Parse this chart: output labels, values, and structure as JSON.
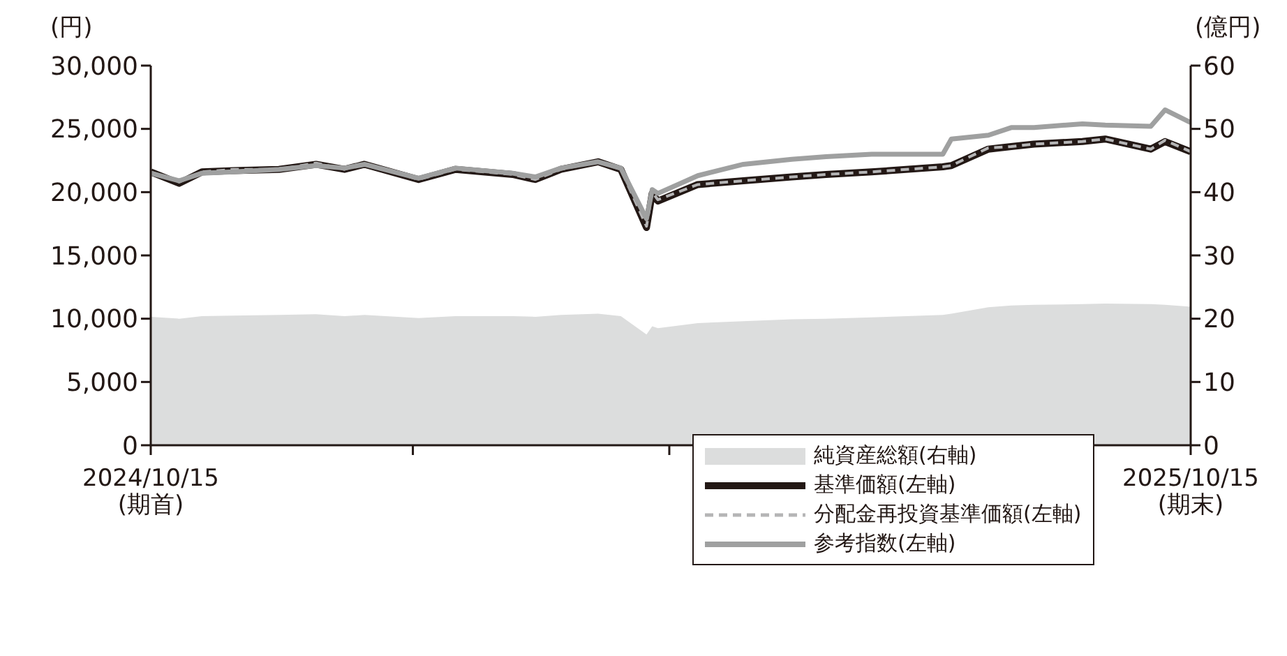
{
  "chart_data": {
    "type": "line",
    "ylabel": "(円)",
    "y2label": "(億円)",
    "x": [
      "2024-10-15",
      "2024-10-25",
      "2024-11-02",
      "2024-11-13",
      "2024-11-29",
      "2024-12-12",
      "2024-12-22",
      "2024-12-29",
      "2025-01-17",
      "2025-01-30",
      "2025-02-19",
      "2025-02-27",
      "2025-03-08",
      "2025-03-21",
      "2025-03-29",
      "2025-04-07",
      "2025-04-09",
      "2025-04-11",
      "2025-04-25",
      "2025-05-11",
      "2025-05-28",
      "2025-06-09",
      "2025-06-25",
      "2025-07-20",
      "2025-07-23",
      "2025-08-05",
      "2025-08-13",
      "2025-08-21",
      "2025-09-07",
      "2025-09-15",
      "2025-10-01",
      "2025-10-06",
      "2025-10-15"
    ],
    "series": [
      {
        "name": "純資産総額(右軸)",
        "type": "area",
        "axis": "y2",
        "color": "#dcdddd",
        "values": [
          20.3,
          20.0,
          20.4,
          20.5,
          20.6,
          20.7,
          20.4,
          20.6,
          20.1,
          20.4,
          20.4,
          20.3,
          20.6,
          20.8,
          20.4,
          17.5,
          18.8,
          18.5,
          19.3,
          19.6,
          19.9,
          20.0,
          20.2,
          20.6,
          20.8,
          21.8,
          22.1,
          22.2,
          22.3,
          22.4,
          22.3,
          22.2,
          21.9
        ]
      },
      {
        "name": "基準価額(左軸)",
        "color": "#231815",
        "values": [
          21600,
          20700,
          21600,
          21700,
          21800,
          22200,
          21800,
          22200,
          21000,
          21800,
          21400,
          21000,
          21800,
          22400,
          21800,
          17200,
          19900,
          19300,
          20600,
          20900,
          21200,
          21400,
          21600,
          22000,
          22100,
          23400,
          23600,
          23800,
          24000,
          24200,
          23400,
          24000,
          23200
        ]
      },
      {
        "name": "分配金再投資基準価額(左軸)",
        "line_style": "dashed",
        "color": "#b5b5b6",
        "values": [
          21600,
          20800,
          21600,
          21800,
          21800,
          22300,
          21800,
          22300,
          21000,
          21800,
          21400,
          21000,
          21800,
          22400,
          21800,
          17300,
          20000,
          19400,
          20600,
          20900,
          21200,
          21400,
          21600,
          22000,
          22100,
          23500,
          23600,
          23800,
          24000,
          24200,
          23400,
          24100,
          23200
        ]
      },
      {
        "name": "参考指数(左軸)",
        "color": "#9fa0a0",
        "values": [
          21500,
          20900,
          21500,
          21600,
          21800,
          22100,
          21900,
          22200,
          21100,
          21900,
          21500,
          21200,
          21900,
          22400,
          21900,
          17900,
          20200,
          19900,
          21300,
          22200,
          22600,
          22800,
          23000,
          23000,
          24200,
          24500,
          25100,
          25100,
          25400,
          25300,
          25200,
          26500,
          25500
        ]
      }
    ],
    "xlim": [
      "2024-10-15",
      "2025-10-15"
    ],
    "xticks": [
      {
        "value": "2024-10-15",
        "label": "2024/10/15\n(期首)"
      },
      {
        "value": "2025-01-15",
        "label": null
      },
      {
        "value": "2025-04-15",
        "label": null
      },
      {
        "value": "2025-07-15",
        "label": null
      },
      {
        "value": "2025-10-15",
        "label": "2025/10/15\n(期末)"
      }
    ],
    "ylim": [
      0,
      30000
    ],
    "yticks": [
      0,
      {
        "value": 5000,
        "label": "5,000"
      },
      {
        "value": 10000,
        "label": "10,000"
      },
      {
        "value": 15000,
        "label": "15,000"
      },
      {
        "value": 20000,
        "label": "20,000"
      },
      {
        "value": 25000,
        "label": "25,000"
      },
      {
        "value": 30000,
        "label": "30,000"
      }
    ],
    "y2lim": [
      0,
      60
    ],
    "y2ticks": [
      0,
      10,
      20,
      30,
      40,
      50,
      60
    ],
    "legend": "bottom right",
    "grid": false
  }
}
